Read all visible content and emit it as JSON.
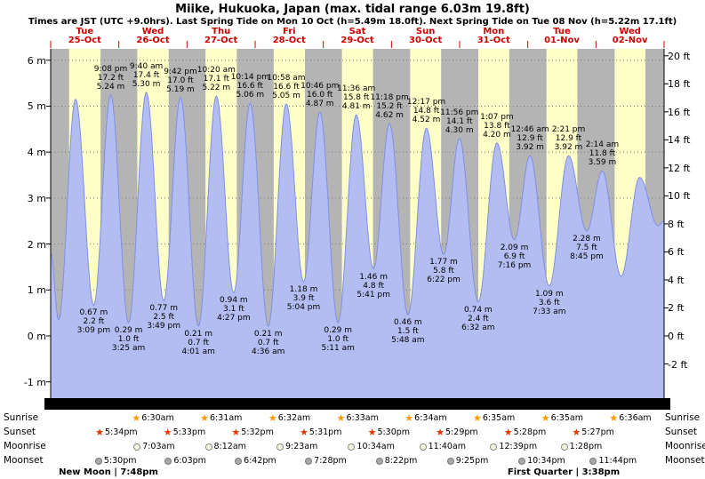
{
  "title": "Miike, Hukuoka, Japan (max. tidal range 6.03m 19.8ft)",
  "subtitle": "Times are JST (UTC +9.0hrs). Last Spring Tide on Mon 10 Oct (h=5.49m 18.0ft). Next Spring Tide on Tue 08 Nov (h=5.22m 17.1ft)",
  "colors": {
    "day_band": "#ffffc8",
    "night_band": "#b4b4b4",
    "tide_fill": "#b3bdf2",
    "tide_stroke": "#7e90e8",
    "day_label": "#cc0000",
    "sunrise_star": "#ff9900",
    "sunset_star": "#e63300",
    "axis_bar": "#000000"
  },
  "days": [
    {
      "weekday": "Tue",
      "date": "25-Oct"
    },
    {
      "weekday": "Wed",
      "date": "26-Oct"
    },
    {
      "weekday": "Thu",
      "date": "27-Oct"
    },
    {
      "weekday": "Fri",
      "date": "28-Oct"
    },
    {
      "weekday": "Sat",
      "date": "29-Oct"
    },
    {
      "weekday": "Sun",
      "date": "30-Oct"
    },
    {
      "weekday": "Mon",
      "date": "31-Oct"
    },
    {
      "weekday": "Tue",
      "date": "01-Nov"
    },
    {
      "weekday": "Wed",
      "date": "02-Nov"
    }
  ],
  "y_axis": {
    "meters": [
      "6 m",
      "5 m",
      "4 m",
      "3 m",
      "2 m",
      "1 m",
      "0 m",
      "-1 m"
    ],
    "feet": [
      "20 ft",
      "18 ft",
      "16 ft",
      "14 ft",
      "12 ft",
      "10 ft",
      "8 ft",
      "6 ft",
      "4 ft",
      "2 ft",
      "0 ft",
      "-2 ft"
    ]
  },
  "chart_data": {
    "type": "area",
    "title": "Tide height curve",
    "x_unit": "hours from Tue 25-Oct 00:00 JST",
    "y_unit_left": "m",
    "y_unit_right": "ft",
    "ylim": [
      -1,
      6
    ],
    "ylim_ft": [
      -2,
      20
    ],
    "tide_points": [
      {
        "t": 0,
        "h": 1.8,
        "labeled": false
      },
      {
        "t": 2.8,
        "h": 0.35,
        "labeled": false
      },
      {
        "t": 8.75,
        "h": 5.15,
        "labeled": false
      },
      {
        "t": 15.15,
        "h": 0.67,
        "labeled": true,
        "type": "low",
        "time": "3:09 pm",
        "ft": "2.2 ft",
        "m": "0.67 m"
      },
      {
        "t": 21.13,
        "h": 5.24,
        "labeled": true,
        "type": "high",
        "time": "9:08 pm",
        "ft": "17.2 ft",
        "m": "5.24 m"
      },
      {
        "t": 27.42,
        "h": 0.29,
        "labeled": true,
        "type": "low",
        "time": "3:25 am",
        "ft": "1.0 ft",
        "m": "0.29 m"
      },
      {
        "t": 33.67,
        "h": 5.3,
        "labeled": true,
        "type": "high",
        "time": "9:40 am",
        "ft": "17.4 ft",
        "m": "5.30 m"
      },
      {
        "t": 39.82,
        "h": 0.77,
        "labeled": true,
        "type": "low",
        "time": "3:49 pm",
        "ft": "2.5 ft",
        "m": "0.77 m"
      },
      {
        "t": 45.7,
        "h": 5.19,
        "labeled": true,
        "type": "high",
        "time": "9:42 pm",
        "ft": "17.0 ft",
        "m": "5.19 m"
      },
      {
        "t": 52.02,
        "h": 0.21,
        "labeled": true,
        "type": "low",
        "time": "4:01 am",
        "ft": "0.7 ft",
        "m": "0.21 m"
      },
      {
        "t": 58.33,
        "h": 5.22,
        "labeled": true,
        "type": "high",
        "time": "10:20 am",
        "ft": "17.1 ft",
        "m": "5.22 m"
      },
      {
        "t": 64.45,
        "h": 0.94,
        "labeled": true,
        "type": "low",
        "time": "4:27 pm",
        "ft": "3.1 ft",
        "m": "0.94 m"
      },
      {
        "t": 70.23,
        "h": 5.06,
        "labeled": true,
        "type": "high",
        "time": "10:14 pm",
        "ft": "16.6 ft",
        "m": "5.06 m"
      },
      {
        "t": 76.6,
        "h": 0.21,
        "labeled": true,
        "type": "low",
        "time": "4:36 am",
        "ft": "0.7 ft",
        "m": "0.21 m"
      },
      {
        "t": 82.97,
        "h": 5.05,
        "labeled": true,
        "type": "high",
        "time": "10:58 am",
        "ft": "16.6 ft",
        "m": "5.05 m"
      },
      {
        "t": 89.07,
        "h": 1.18,
        "labeled": true,
        "type": "low",
        "time": "5:04 pm",
        "ft": "3.9 ft",
        "m": "1.18 m"
      },
      {
        "t": 94.77,
        "h": 4.87,
        "labeled": true,
        "type": "high",
        "time": "10:46 pm",
        "ft": "16.0 ft",
        "m": "4.87 m"
      },
      {
        "t": 101.18,
        "h": 0.29,
        "labeled": true,
        "type": "low",
        "time": "5:11 am",
        "ft": "1.0 ft",
        "m": "0.29 m"
      },
      {
        "t": 107.6,
        "h": 4.81,
        "labeled": true,
        "type": "high",
        "time": "11:36 am",
        "ft": "15.8 ft",
        "m": "4.81 m"
      },
      {
        "t": 113.68,
        "h": 1.46,
        "labeled": true,
        "type": "low",
        "time": "5:41 pm",
        "ft": "4.8 ft",
        "m": "1.46 m"
      },
      {
        "t": 119.3,
        "h": 4.62,
        "labeled": true,
        "type": "high",
        "time": "11:18 pm",
        "ft": "15.2 ft",
        "m": "4.62 m"
      },
      {
        "t": 125.8,
        "h": 0.46,
        "labeled": true,
        "type": "low",
        "time": "5:48 am",
        "ft": "1.5 ft",
        "m": "0.46 m"
      },
      {
        "t": 132.28,
        "h": 4.52,
        "labeled": true,
        "type": "high",
        "time": "12:17 pm",
        "ft": "14.8 ft",
        "m": "4.52 m"
      },
      {
        "t": 138.37,
        "h": 1.77,
        "labeled": true,
        "type": "low",
        "time": "6:22 pm",
        "ft": "5.8 ft",
        "m": "1.77 m"
      },
      {
        "t": 143.93,
        "h": 4.3,
        "labeled": true,
        "type": "high",
        "time": "11:56 pm",
        "ft": "14.1 ft",
        "m": "4.30 m"
      },
      {
        "t": 150.53,
        "h": 0.74,
        "labeled": true,
        "type": "low",
        "time": "6:32 am",
        "ft": "2.4 ft",
        "m": "0.74 m"
      },
      {
        "t": 157.12,
        "h": 4.2,
        "labeled": true,
        "type": "high",
        "time": "1:07 pm",
        "ft": "13.8 ft",
        "m": "4.20 m"
      },
      {
        "t": 163.27,
        "h": 2.09,
        "labeled": true,
        "type": "low",
        "time": "7:16 pm",
        "ft": "6.9 ft",
        "m": "2.09 m"
      },
      {
        "t": 168.77,
        "h": 3.92,
        "labeled": true,
        "type": "high",
        "time": "12:46 am",
        "ft": "12.9 ft",
        "m": "3.92 m"
      },
      {
        "t": 175.55,
        "h": 1.09,
        "labeled": true,
        "type": "low",
        "time": "7:33 am",
        "ft": "3.6 ft",
        "m": "1.09 m"
      },
      {
        "t": 182.35,
        "h": 3.92,
        "labeled": true,
        "type": "high",
        "time": "2:21 pm",
        "ft": "12.9 ft",
        "m": "3.92 m"
      },
      {
        "t": 188.75,
        "h": 2.28,
        "labeled": true,
        "type": "low",
        "time": "8:45 pm",
        "ft": "7.5 ft",
        "m": "2.28 m"
      },
      {
        "t": 194.23,
        "h": 3.59,
        "labeled": true,
        "type": "high",
        "time": "2:14 am",
        "ft": "11.8 ft",
        "m": "3.59 m"
      },
      {
        "t": 200.85,
        "h": 1.3,
        "labeled": false
      },
      {
        "t": 207.4,
        "h": 3.45,
        "labeled": false
      },
      {
        "t": 213.83,
        "h": 2.4,
        "labeled": false
      },
      {
        "t": 216,
        "h": 2.5,
        "labeled": false
      }
    ]
  },
  "astro": {
    "row_labels": [
      "Sunrise",
      "Sunset",
      "Moonrise",
      "Moonset"
    ],
    "sunrise": {
      "times": [
        "6:30am",
        "6:31am",
        "6:32am",
        "6:33am",
        "6:34am",
        "6:35am",
        "6:35am",
        "6:36am"
      ],
      "start_day": 1
    },
    "sunset": {
      "times": [
        "5:34pm",
        "5:33pm",
        "5:32pm",
        "5:31pm",
        "5:30pm",
        "5:29pm",
        "5:28pm",
        "5:27pm"
      ],
      "start_day": 0
    },
    "moonrise": {
      "times": [
        "7:03am",
        "8:12am",
        "9:23am",
        "10:34am",
        "11:40am",
        "12:39pm",
        "1:28pm"
      ],
      "start_day": 1
    },
    "moonset": {
      "times": [
        "5:30pm",
        "6:03pm",
        "6:42pm",
        "7:28pm",
        "8:22pm",
        "9:25pm",
        "10:34pm",
        "11:44pm"
      ],
      "start_day": 0
    },
    "phases": [
      {
        "label": "New Moon | 7:48pm"
      },
      {
        "label": "First Quarter | 3:38pm"
      }
    ]
  }
}
